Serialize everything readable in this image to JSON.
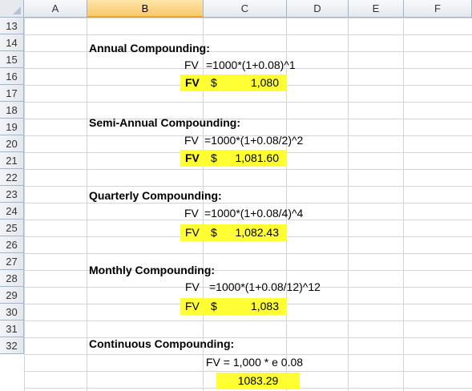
{
  "columns": [
    "A",
    "B",
    "C",
    "D",
    "E",
    "F"
  ],
  "selected_column": "B",
  "rows": [
    "13",
    "14",
    "15",
    "16",
    "17",
    "18",
    "19",
    "20",
    "21",
    "22",
    "23",
    "24",
    "25",
    "26",
    "27",
    "28",
    "29",
    "30",
    "31",
    "32"
  ],
  "sections": {
    "annual": {
      "title": "Annual Compounding:",
      "formula_label": "FV",
      "formula": "=1000*(1+0.08)^1",
      "result_label": "FV",
      "currency": "$",
      "value": "1,080"
    },
    "semi": {
      "title": "Semi-Annual Compounding:",
      "formula_label": "FV",
      "formula": "=1000*(1+0.08/2)^2",
      "result_label": "FV",
      "currency": "$",
      "value": "1,081.60"
    },
    "quarterly": {
      "title": "Quarterly Compounding:",
      "formula_label": "FV",
      "formula": "=1000*(1+0.08/4)^4",
      "result_label": "FV",
      "currency": "$",
      "value": "1,082.43"
    },
    "monthly": {
      "title": "Monthly Compounding:",
      "formula_label": "FV",
      "formula": "=1000*(1+0.08/12)^12",
      "result_label": "FV",
      "currency": "$",
      "value": "1,083"
    },
    "continuous": {
      "title": "Continuous Compounding:",
      "formula_text": "FV = 1,000 * e 0.08",
      "value": "1083.29"
    }
  }
}
